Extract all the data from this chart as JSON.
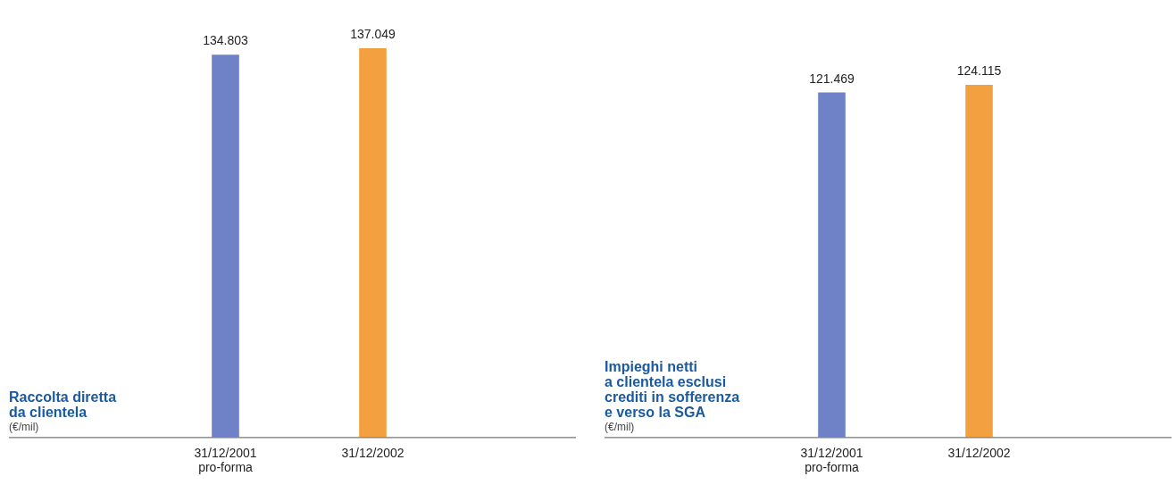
{
  "chart_data": [
    {
      "type": "bar",
      "title": "Raccolta diretta\nda clientela",
      "ylabel": "(€/mil)",
      "categories": [
        "31/12/2001\npro-forma",
        "31/12/2002"
      ],
      "values": [
        134803,
        137049
      ],
      "colors": [
        "#6f82c8",
        "#f3a040"
      ],
      "value_labels": [
        "134.803",
        "137.049"
      ],
      "legend": false,
      "grid": false
    },
    {
      "type": "bar",
      "title": "Impieghi netti\na clientela esclusi\ncrediti in sofferenza\ne verso la SGA",
      "ylabel": "(€/mil)",
      "categories": [
        "31/12/2001\npro-forma",
        "31/12/2002"
      ],
      "values": [
        121469,
        124115
      ],
      "colors": [
        "#6f82c8",
        "#f3a040"
      ],
      "value_labels": [
        "121.469",
        "124.115"
      ],
      "legend": false,
      "grid": false
    }
  ]
}
